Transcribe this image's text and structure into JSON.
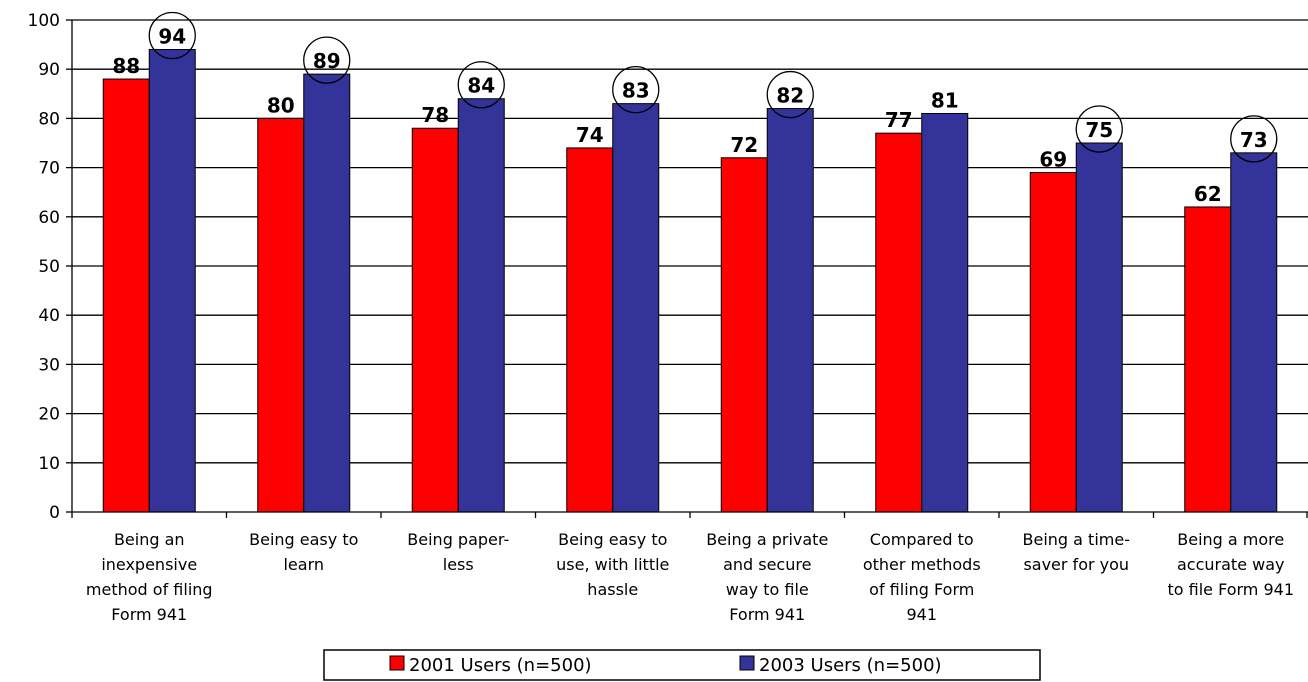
{
  "chart_data": {
    "type": "bar",
    "title": "",
    "xlabel": "",
    "ylabel": "",
    "ylim": [
      0,
      100
    ],
    "yticks": [
      0,
      10,
      20,
      30,
      40,
      50,
      60,
      70,
      80,
      90,
      100
    ],
    "grid": true,
    "legend_position": "bottom",
    "categories": [
      "Being an inexpensive method of filing Form 941",
      "Being easy to learn",
      "Being paper-less",
      "Being easy to use, with little hassle",
      "Being a private and secure way to file Form 941",
      "Compared to other methods of filing Form 941",
      "Being a time-saver for you",
      "Being a more accurate way to file Form 941"
    ],
    "category_lines": [
      [
        "Being an",
        "inexpensive",
        "method of filing",
        "Form 941"
      ],
      [
        "Being easy to",
        "learn"
      ],
      [
        "Being paper-",
        "less"
      ],
      [
        "Being easy to",
        "use, with little",
        "hassle"
      ],
      [
        "Being a private",
        "and secure",
        "way to file",
        "Form 941"
      ],
      [
        "Compared to",
        "other methods",
        "of filing Form",
        "941"
      ],
      [
        "Being a time-",
        "saver for you"
      ],
      [
        "Being a more",
        "accurate way",
        "to file Form 941"
      ]
    ],
    "series": [
      {
        "name": "2001 Users (n=500)",
        "color": "#ff0000",
        "values": [
          88,
          80,
          78,
          74,
          72,
          77,
          69,
          62
        ]
      },
      {
        "name": "2003 Users (n=500)",
        "color": "#333399",
        "values": [
          94,
          89,
          84,
          83,
          82,
          81,
          75,
          73
        ]
      }
    ],
    "circled_labels_series_2": [
      true,
      true,
      true,
      true,
      true,
      false,
      true,
      true
    ]
  }
}
